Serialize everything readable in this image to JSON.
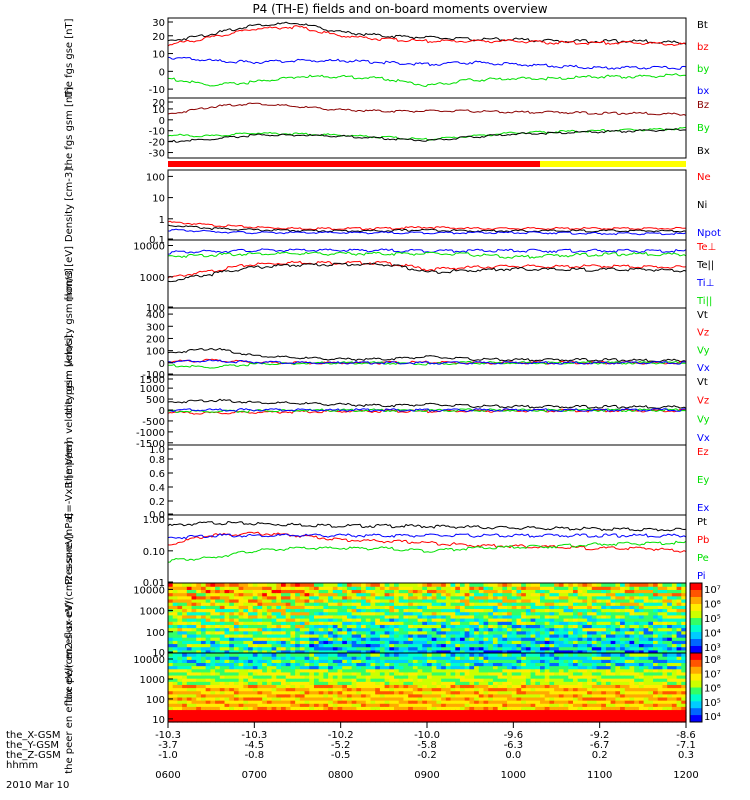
{
  "title": "P4 (TH-E) fields and on-board moments overview",
  "date": "2010 Mar 10",
  "x_axis": {
    "tick_labels": [
      "0600",
      "0700",
      "0800",
      "0900",
      "1000",
      "1100",
      "1200"
    ],
    "rows": [
      {
        "name": "the_X-GSM",
        "values": [
          "-10.3",
          "-10.3",
          "-10.2",
          "-10.0",
          "-9.6",
          "-9.2",
          "-8.6"
        ]
      },
      {
        "name": "the_Y-GSM",
        "values": [
          "-3.7",
          "-4.5",
          "-5.2",
          "-5.8",
          "-6.3",
          "-6.7",
          "-7.1"
        ]
      },
      {
        "name": "the_Z-GSM",
        "values": [
          "-1.0",
          "-0.8",
          "-0.5",
          "-0.2",
          "0.0",
          "0.2",
          "0.3"
        ]
      },
      {
        "name": "hhmm",
        "values": []
      }
    ]
  },
  "colors": {
    "black": "#000000",
    "red": "#ff0000",
    "green": "#00e000",
    "blue": "#0000ff",
    "darkred": "#8b0000",
    "yellow": "#ffff00"
  },
  "chart_data": [
    {
      "type": "line",
      "ylabel": "the fgs gse [nT]",
      "ylim": [
        -15,
        30
      ],
      "ticks": [
        "30",
        "20",
        "10",
        "0",
        "-10"
      ],
      "series": [
        {
          "name": "Bt",
          "color": "#000000",
          "values": [
            17,
            21,
            26,
            27,
            22,
            20,
            19,
            18,
            18,
            17,
            17,
            17,
            16
          ]
        },
        {
          "name": "bz",
          "color": "#ff0000",
          "values": [
            15,
            19,
            24,
            25,
            20,
            18,
            17,
            17,
            17,
            16,
            16,
            16,
            15
          ]
        },
        {
          "name": "by",
          "color": "#00e000",
          "values": [
            -4,
            -8,
            -6,
            -3,
            -3,
            -4,
            -8,
            -5,
            -4,
            -4,
            -3,
            -3,
            -2
          ]
        },
        {
          "name": "bx",
          "color": "#0000ff",
          "values": [
            8,
            6,
            5,
            6,
            6,
            5,
            4,
            5,
            4,
            3,
            2,
            2,
            2
          ]
        }
      ]
    },
    {
      "type": "line",
      "ylabel": "the fgs gsm [nT]",
      "ylim": [
        -35,
        20
      ],
      "ticks": [
        "20",
        "10",
        "0",
        "-10",
        "-20",
        "-30"
      ],
      "series": [
        {
          "name": "Bz",
          "color": "#8b0000",
          "values": [
            5,
            12,
            15,
            12,
            9,
            8,
            8,
            8,
            7,
            7,
            6,
            6,
            5
          ]
        },
        {
          "name": "By",
          "color": "#00e000",
          "values": [
            -14,
            -15,
            -12,
            -13,
            -14,
            -16,
            -18,
            -15,
            -12,
            -11,
            -10,
            -9,
            -8
          ]
        },
        {
          "name": "Bx",
          "color": "#000000",
          "values": [
            -20,
            -18,
            -14,
            -14,
            -15,
            -17,
            -19,
            -16,
            -13,
            -12,
            -11,
            -10,
            -9
          ]
        }
      ]
    },
    {
      "type": "line",
      "ylabel": "Density [cm-3]",
      "scale": "log",
      "ylim": [
        0.1,
        200
      ],
      "ticks": [
        "100",
        "10",
        "1",
        "0.1"
      ],
      "series": [
        {
          "name": "Ne",
          "color": "#ff0000",
          "values": [
            0.7,
            0.5,
            0.4,
            0.35,
            0.35,
            0.35,
            0.4,
            0.35,
            0.35,
            0.35,
            0.35,
            0.35,
            0.35
          ]
        },
        {
          "name": "Ni",
          "color": "#000000",
          "values": [
            0.5,
            0.35,
            0.3,
            0.28,
            0.27,
            0.27,
            0.3,
            0.27,
            0.27,
            0.27,
            0.27,
            0.27,
            0.27
          ]
        },
        {
          "name": "Npot",
          "color": "#0000ff",
          "values": [
            0.3,
            0.25,
            0.22,
            0.22,
            0.22,
            0.22,
            0.22,
            0.22,
            0.22,
            0.22,
            0.2,
            0.2,
            0.2
          ]
        }
      ]
    },
    {
      "type": "line",
      "ylabel": "mom3 [eV]",
      "scale": "log",
      "ylim": [
        100,
        15000
      ],
      "ticks": [
        "10000",
        "1000",
        "100"
      ],
      "series": [
        {
          "name": "Te⊥",
          "color": "#ff0000",
          "values": [
            900,
            1500,
            2500,
            2900,
            2800,
            2800,
            1700,
            2000,
            2200,
            2100,
            2200,
            2100,
            2000
          ]
        },
        {
          "name": "Te||",
          "color": "#000000",
          "values": [
            700,
            1200,
            2000,
            2400,
            2500,
            2500,
            1400,
            1600,
            1800,
            1700,
            1700,
            1700,
            1600
          ]
        },
        {
          "name": "Ti⊥",
          "color": "#0000ff",
          "values": [
            6000,
            6500,
            7000,
            7000,
            7000,
            7000,
            6800,
            6800,
            6800,
            6800,
            6800,
            6700,
            6700
          ]
        },
        {
          "name": "Ti||",
          "color": "#00e000",
          "values": [
            4500,
            5000,
            5500,
            5500,
            5500,
            5500,
            5500,
            5200,
            4200,
            4800,
            5200,
            5400,
            5200
          ]
        }
      ]
    },
    {
      "type": "line",
      "ylabel": "the peim velocity gsm [km/s]",
      "ylim": [
        -100,
        450
      ],
      "ticks": [
        "400",
        "300",
        "200",
        "100",
        "0",
        "-100"
      ],
      "series": [
        {
          "name": "Vt",
          "color": "#000000",
          "values": [
            80,
            120,
            60,
            40,
            30,
            30,
            50,
            30,
            25,
            25,
            25,
            20,
            20
          ]
        },
        {
          "name": "Vz",
          "color": "#ff0000",
          "values": [
            10,
            20,
            5,
            0,
            0,
            0,
            5,
            0,
            0,
            0,
            0,
            0,
            0
          ]
        },
        {
          "name": "Vy",
          "color": "#00e000",
          "values": [
            -20,
            -40,
            -10,
            -5,
            0,
            0,
            -10,
            0,
            0,
            0,
            0,
            0,
            0
          ]
        },
        {
          "name": "Vx",
          "color": "#0000ff",
          "values": [
            10,
            15,
            5,
            0,
            0,
            0,
            0,
            0,
            0,
            0,
            0,
            0,
            0
          ]
        }
      ]
    },
    {
      "type": "line",
      "ylabel": "the peem velocity gsm [km/s]",
      "ylim": [
        -1600,
        1600
      ],
      "ticks": [
        "1500",
        "1000",
        "500",
        "0",
        "-500",
        "-1000",
        "-1500"
      ],
      "series": [
        {
          "name": "Vt",
          "color": "#000000",
          "values": [
            350,
            450,
            350,
            300,
            250,
            200,
            250,
            180,
            160,
            150,
            150,
            140,
            140
          ]
        },
        {
          "name": "Vz",
          "color": "#ff0000",
          "values": [
            -100,
            -150,
            -100,
            -80,
            -60,
            -50,
            -60,
            -40,
            -40,
            -30,
            -30,
            -30,
            -30
          ]
        },
        {
          "name": "Vy",
          "color": "#00e000",
          "values": [
            -50,
            -80,
            -40,
            -20,
            -10,
            -10,
            -20,
            -10,
            -10,
            -10,
            -10,
            -10,
            -10
          ]
        },
        {
          "name": "Vx",
          "color": "#0000ff",
          "values": [
            0,
            0,
            0,
            0,
            0,
            0,
            0,
            0,
            0,
            0,
            0,
            0,
            0
          ]
        }
      ]
    },
    {
      "type": "line",
      "ylabel": "E=-VxB [mV/m]",
      "ylim": [
        0,
        1.0
      ],
      "ticks": [
        "1.0",
        "0.8",
        "0.6",
        "0.4",
        "0.2",
        "0.0"
      ],
      "series": [
        {
          "name": "Ez",
          "color": "#ff0000",
          "values": []
        },
        {
          "name": "Ey",
          "color": "#00e000",
          "values": []
        },
        {
          "name": "Ex",
          "color": "#0000ff",
          "values": []
        }
      ]
    },
    {
      "type": "line",
      "ylabel": "Pressure [nPa]",
      "scale": "log",
      "ylim": [
        0.01,
        1.3
      ],
      "ticks": [
        "1.00",
        "0.10",
        "0.01"
      ],
      "series": [
        {
          "name": "Pt",
          "color": "#000000",
          "values": [
            0.6,
            0.75,
            0.7,
            0.65,
            0.6,
            0.6,
            0.58,
            0.55,
            0.52,
            0.5,
            0.48,
            0.46,
            0.45
          ]
        },
        {
          "name": "Pb",
          "color": "#ff0000",
          "values": [
            0.15,
            0.3,
            0.35,
            0.3,
            0.22,
            0.2,
            0.18,
            0.15,
            0.14,
            0.13,
            0.12,
            0.12,
            0.1
          ]
        },
        {
          "name": "Pe",
          "color": "#00e000",
          "values": [
            0.05,
            0.06,
            0.1,
            0.12,
            0.12,
            0.12,
            0.1,
            0.12,
            0.13,
            0.14,
            0.16,
            0.17,
            0.18
          ]
        },
        {
          "name": "Pi",
          "color": "#0000ff",
          "values": [
            0.25,
            0.3,
            0.3,
            0.3,
            0.3,
            0.3,
            0.3,
            0.3,
            0.3,
            0.3,
            0.3,
            0.3,
            0.3
          ]
        }
      ]
    },
    {
      "type": "heatmap",
      "ylabel": "the peir en eflux eV/(cm2-s-sr-eV)",
      "scale": "log",
      "ylim": [
        10,
        20000
      ],
      "ticks": [
        "10000",
        "1000",
        "100",
        "10"
      ],
      "colorbar": {
        "ticks": [
          "10⁷",
          "10⁶",
          "10⁵",
          "10⁴",
          "10³"
        ]
      }
    },
    {
      "type": "heatmap",
      "ylabel": "the peer en eflux eV/(cm2-s-sr-eV)",
      "scale": "log",
      "ylim": [
        7,
        20000
      ],
      "ticks": [
        "10000",
        "1000",
        "100",
        "10"
      ],
      "colorbar": {
        "ticks": [
          "10⁸",
          "10⁷",
          "10⁶",
          "10⁵",
          "10⁴"
        ]
      }
    }
  ]
}
